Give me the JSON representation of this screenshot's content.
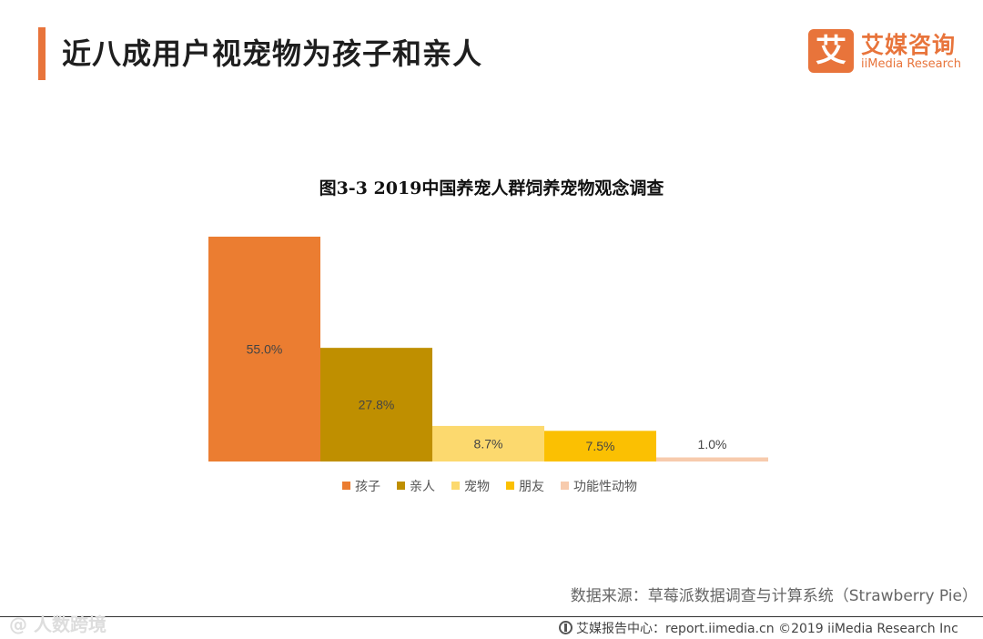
{
  "header": {
    "title": "近八成用户视宠物为孩子和亲人",
    "logo": {
      "mark": "艾",
      "name_cn": "艾媒咨询",
      "name_en": "iiMedia Research"
    }
  },
  "chart_data": {
    "type": "bar",
    "title": "图3-3 2019中国养宠人群饲养宠物观念调查",
    "categories": [
      "孩子",
      "亲人",
      "宠物",
      "朋友",
      "功能性动物"
    ],
    "values": [
      55.0,
      27.8,
      8.7,
      7.5,
      1.0
    ],
    "value_labels": [
      "55.0%",
      "27.8%",
      "8.7%",
      "7.5%",
      "1.0%"
    ],
    "colors": [
      "#eb7d31",
      "#bf8f00",
      "#fcd96e",
      "#fbc002",
      "#f7cbad"
    ],
    "ylim": [
      0,
      55
    ],
    "xlabel": "",
    "ylabel": "",
    "grid": false,
    "legend": "bottom"
  },
  "footer": {
    "source": "数据来源：草莓派数据调查与计算系统（Strawberry Pie）",
    "site": "艾媒报告中心：report.iimedia.cn  ©2019  iiMedia Research  Inc",
    "watermark": "@ 人数跨境"
  }
}
